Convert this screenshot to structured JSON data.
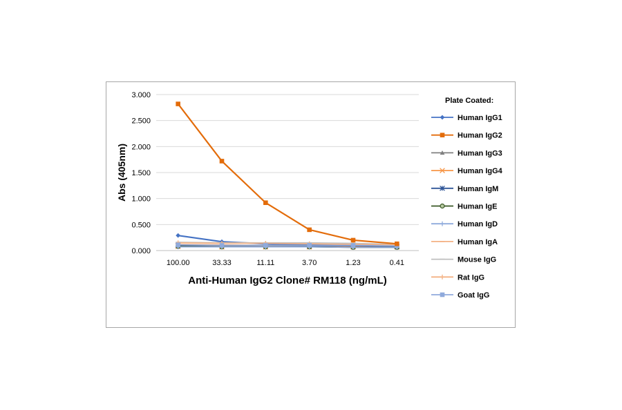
{
  "chart_data": {
    "type": "line",
    "title": "",
    "xlabel": "Anti-Human IgG2 Clone# RM118 (ng/mL)",
    "ylabel": "Abs (405nm)",
    "categories": [
      "100.00",
      "33.33",
      "11.11",
      "3.70",
      "1.23",
      "0.41"
    ],
    "ylim": [
      0,
      3
    ],
    "yticks": [
      "0.000",
      "0.500",
      "1.000",
      "1.500",
      "2.000",
      "2.500",
      "3.000"
    ],
    "grid": "horizontal",
    "legend": {
      "title": "Plate Coated:",
      "placement": "right"
    },
    "series": [
      {
        "name": "Human IgG1",
        "color": "#4472c4",
        "marker": "diamond",
        "values": [
          0.29,
          0.17,
          0.13,
          0.11,
          0.1,
          0.09
        ]
      },
      {
        "name": "Human IgG2",
        "color": "#e36c0a",
        "marker": "square",
        "values": [
          2.82,
          1.72,
          0.92,
          0.4,
          0.2,
          0.13
        ]
      },
      {
        "name": "Human IgG3",
        "color": "#808080",
        "marker": "triangle",
        "values": [
          0.1,
          0.09,
          0.09,
          0.09,
          0.08,
          0.08
        ]
      },
      {
        "name": "Human IgG4",
        "color": "#f79646",
        "marker": "x",
        "values": [
          0.08,
          0.07,
          0.07,
          0.07,
          0.07,
          0.07
        ]
      },
      {
        "name": "Human IgM",
        "color": "#2f5597",
        "marker": "star",
        "values": [
          0.1,
          0.1,
          0.1,
          0.09,
          0.09,
          0.08
        ]
      },
      {
        "name": "Human IgE",
        "color": "#375623",
        "marker": "circle",
        "values": [
          0.08,
          0.07,
          0.07,
          0.07,
          0.06,
          0.06
        ]
      },
      {
        "name": "Human IgD",
        "color": "#8eaadb",
        "marker": "plus",
        "values": [
          0.07,
          0.07,
          0.07,
          0.07,
          0.06,
          0.06
        ]
      },
      {
        "name": "Human IgA",
        "color": "#f4b183",
        "marker": "dash",
        "values": [
          0.12,
          0.11,
          0.1,
          0.1,
          0.1,
          0.09
        ]
      },
      {
        "name": "Mouse IgG",
        "color": "#bfbfbf",
        "marker": "dash",
        "values": [
          0.16,
          0.15,
          0.15,
          0.15,
          0.14,
          0.12
        ]
      },
      {
        "name": "Rat IgG",
        "color": "#f4b183",
        "marker": "plus",
        "values": [
          0.15,
          0.14,
          0.14,
          0.13,
          0.12,
          0.11
        ]
      },
      {
        "name": "Goat IgG",
        "color": "#8faadc",
        "marker": "square",
        "values": [
          0.11,
          0.1,
          0.1,
          0.1,
          0.1,
          0.09
        ]
      }
    ]
  }
}
